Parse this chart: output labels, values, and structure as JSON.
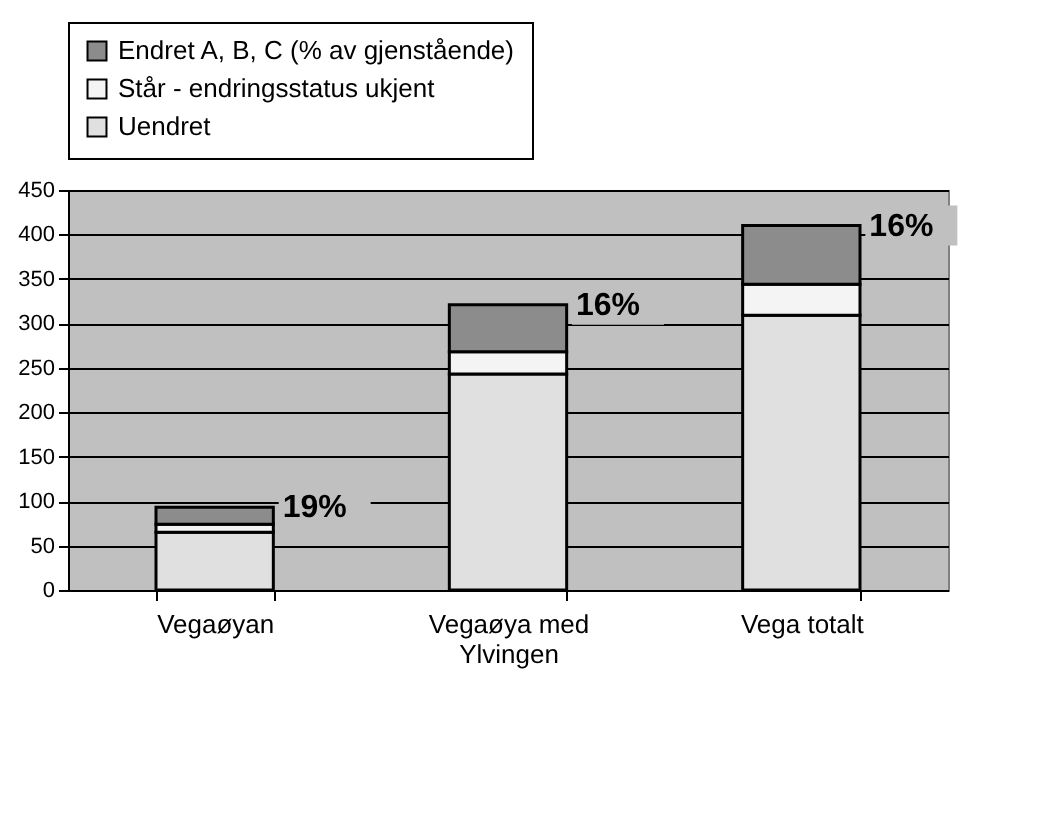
{
  "chart_data": {
    "type": "bar",
    "stacked": true,
    "categories": [
      "Vegaøyan",
      "Vegaøya med Ylvingen",
      "Vega totalt"
    ],
    "series": [
      {
        "name": "Uendret",
        "color": "#e0e0e0",
        "values": [
          65,
          243,
          309
        ]
      },
      {
        "name": "Står - endringsstatus ukjent",
        "color": "#f4f4f4",
        "values": [
          9,
          25,
          35
        ]
      },
      {
        "name": "Endret A, B, C (% av gjenstående)",
        "color": "#8c8c8c",
        "values": [
          19,
          53,
          66
        ]
      }
    ],
    "ylim": [
      0,
      450
    ],
    "yticks": [
      0,
      50,
      100,
      150,
      200,
      250,
      300,
      350,
      400,
      450
    ],
    "grid": "y",
    "legend": "top",
    "annotations": [
      {
        "text": "19%",
        "x": "Vegaøyan",
        "y": 93
      },
      {
        "text": "16%",
        "x": "Vegaøya med Ylvingen",
        "y": 321
      },
      {
        "text": "16%",
        "x": "Vega totalt",
        "y": 410
      }
    ]
  }
}
